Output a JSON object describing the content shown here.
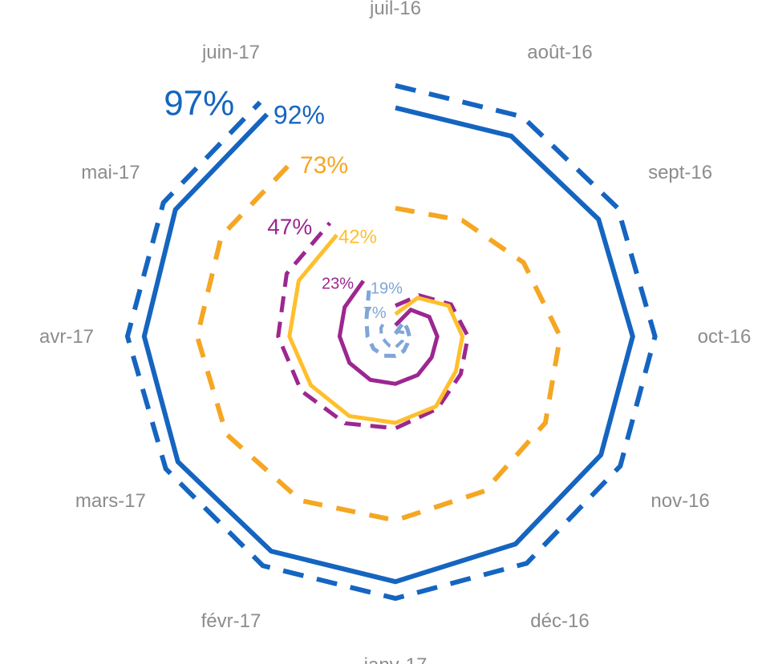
{
  "chart_data": {
    "type": "radar",
    "categories": [
      "juil-16",
      "août-16",
      "sept-16",
      "oct-16",
      "nov-16",
      "déc-16",
      "janv-17",
      "févr-17",
      "mars-17",
      "avr-17",
      "mai-17",
      "juin-17"
    ],
    "ylim": [
      0,
      100
    ],
    "grid": false,
    "series": [
      {
        "color": "#1565c0",
        "style": "dashed",
        "values": [
          90,
          91,
          92,
          93,
          93,
          94,
          94,
          95,
          95,
          96,
          96,
          97
        ],
        "end_label": "97%"
      },
      {
        "color": "#1565c0",
        "style": "solid",
        "values": [
          82,
          83,
          84,
          85,
          85,
          86,
          88,
          89,
          90,
          90,
          91,
          92
        ],
        "end_label": "92%"
      },
      {
        "color": "#f5a623",
        "style": "dashed",
        "values": [
          46,
          48,
          53,
          59,
          62,
          64,
          66,
          68,
          70,
          71,
          72,
          73
        ],
        "end_label": "73%"
      },
      {
        "color": "#9c2790",
        "style": "dashed",
        "values": [
          11,
          17,
          23,
          26,
          27,
          30,
          33,
          36,
          39,
          42,
          45,
          47
        ],
        "end_label": "47%"
      },
      {
        "color": "#ffbf2d",
        "style": "solid",
        "values": [
          8,
          16,
          22,
          24,
          25,
          29,
          31,
          33,
          35,
          38,
          40,
          42
        ],
        "end_label": "42%"
      },
      {
        "color": "#9c2790",
        "style": "solid",
        "values": [
          4,
          11,
          14,
          15,
          15,
          16,
          17,
          18,
          19,
          20,
          21,
          23
        ],
        "end_label": "23%"
      },
      {
        "color": "#7fa6d8",
        "style": "dashed",
        "values": [
          1,
          6,
          5,
          5,
          5,
          6,
          7,
          8,
          9,
          10,
          12,
          19
        ],
        "end_label": "19%"
      },
      {
        "color": "#7fa6d8",
        "style": "dashed",
        "values": [
          1,
          2,
          3,
          3,
          3,
          3,
          4,
          4,
          4,
          5,
          6,
          7
        ],
        "end_label": "7%"
      }
    ]
  }
}
